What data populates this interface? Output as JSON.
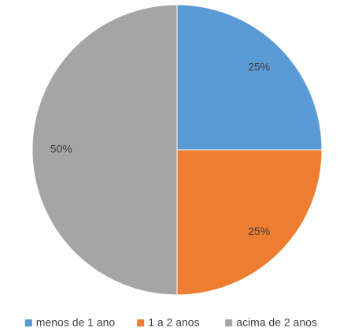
{
  "chart_data": {
    "type": "pie",
    "categories": [
      "menos de 1 ano",
      "1 a 2 anos",
      "acima de 2 anos"
    ],
    "values": [
      25,
      25,
      50
    ],
    "value_labels": [
      "25%",
      "25%",
      "50%"
    ],
    "colors": [
      "#5b9bd5",
      "#ed7d31",
      "#a5a5a5"
    ],
    "legend": "bottom"
  }
}
